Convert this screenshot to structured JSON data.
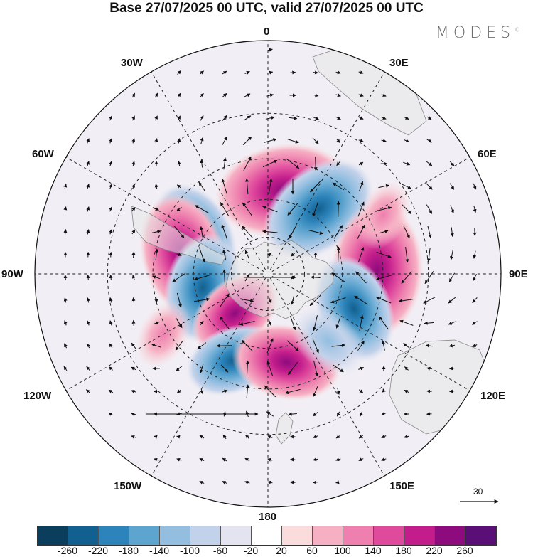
{
  "header": {
    "title": "Base 27/07/2025 00 UTC, valid 27/07/2025 00 UTC",
    "logo": "MODES",
    "logo_mark": "©"
  },
  "map": {
    "projection": "south-polar-stereographic",
    "longitude_labels": {
      "top": "0",
      "bottom": "180",
      "left": "90W",
      "right": "90E",
      "l30w": "30W",
      "l30e": "30E",
      "l60w": "60W",
      "l60e": "60E",
      "l120w": "120W",
      "l120e": "120E",
      "l150w": "150W",
      "l150e": "150E"
    },
    "anomaly_centers": [
      {
        "lon": 10,
        "lat": -56,
        "sign": "positive",
        "magnitude": 260
      },
      {
        "lon": 38,
        "lat": -57,
        "sign": "negative",
        "magnitude": -220
      },
      {
        "lon": 88,
        "lat": -47,
        "sign": "positive",
        "magnitude": 260
      },
      {
        "lon": 112,
        "lat": -53,
        "sign": "negative",
        "magnitude": -180
      },
      {
        "lon": -62,
        "lat": -57,
        "sign": "negative",
        "magnitude": -180
      },
      {
        "lon": -77,
        "lat": -55,
        "sign": "positive",
        "magnitude": 220
      },
      {
        "lon": -102,
        "lat": -63,
        "sign": "negative",
        "magnitude": -180
      },
      {
        "lon": -140,
        "lat": -69,
        "sign": "positive",
        "magnitude": 140
      },
      {
        "lon": -158,
        "lat": -53,
        "sign": "negative",
        "magnitude": -140
      },
      {
        "lon": 168,
        "lat": -54,
        "sign": "positive",
        "magnitude": 180
      },
      {
        "lon": 138,
        "lat": -54,
        "sign": "negative",
        "magnitude": -100
      },
      {
        "lon": -120,
        "lat": -43,
        "sign": "positive",
        "magnitude": 60
      },
      {
        "lon": 63,
        "lat": -40,
        "sign": "positive",
        "magnitude": 60
      }
    ]
  },
  "reference_vector": {
    "value": "30"
  },
  "colorbar": {
    "colors": [
      "#0b3e5c",
      "#12608f",
      "#2d84ba",
      "#5da4cf",
      "#93bee0",
      "#c2d2ea",
      "#e4e4f1",
      "#ffffff",
      "#fbdcdc",
      "#f6b0c4",
      "#ee7fae",
      "#df4a9d",
      "#c21d8b",
      "#8e0b7e",
      "#5a0f76"
    ],
    "tick_labels": [
      "-260",
      "-220",
      "-180",
      "-140",
      "-100",
      "-60",
      "-20",
      "20",
      "60",
      "100",
      "140",
      "180",
      "220",
      "260"
    ]
  }
}
